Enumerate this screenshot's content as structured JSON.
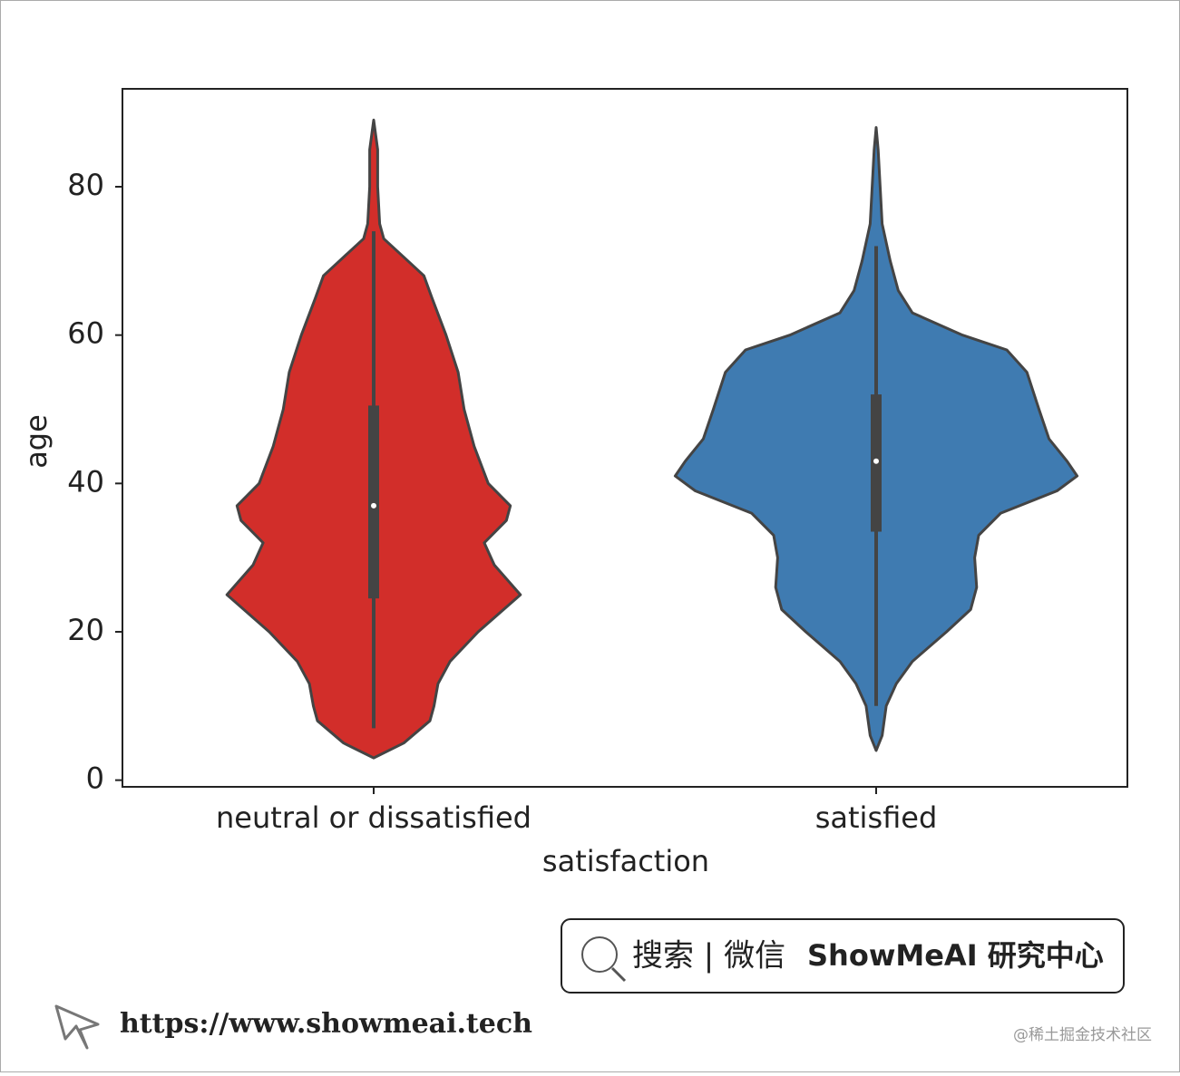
{
  "chart_data": {
    "type": "violin",
    "x_label": "satisfaction",
    "y_label": "age",
    "categories": [
      "neutral or dissatisfied",
      "satisfied"
    ],
    "ylim": [
      -0.9,
      93.2
    ],
    "yticks": [
      0,
      20,
      40,
      60,
      80
    ],
    "grid": false,
    "series": [
      {
        "name": "neutral or dissatisfied",
        "color": "#d22e2a",
        "kde_y": [
          3,
          5,
          8,
          10,
          13,
          16,
          20,
          25,
          29,
          32,
          35,
          37,
          40,
          45,
          50,
          55,
          60,
          65,
          68,
          70,
          73,
          75,
          80,
          85,
          89
        ],
        "kde_width": [
          0,
          0.15,
          0.28,
          0.3,
          0.32,
          0.38,
          0.52,
          0.73,
          0.6,
          0.55,
          0.66,
          0.68,
          0.57,
          0.5,
          0.45,
          0.42,
          0.36,
          0.29,
          0.25,
          0.17,
          0.05,
          0.03,
          0.02,
          0.02,
          0
        ],
        "min": 7,
        "q1": 24.5,
        "median": 37,
        "q3": 50.5,
        "max": 74
      },
      {
        "name": "satisfied",
        "color": "#3f7bb1",
        "kde_y": [
          4,
          6,
          10,
          13,
          16,
          20,
          23,
          26,
          30,
          33,
          36,
          39,
          41,
          43,
          46,
          50,
          55,
          58,
          60,
          63,
          66,
          70,
          75,
          80,
          85,
          88
        ],
        "kde_width": [
          0,
          0.03,
          0.05,
          0.1,
          0.18,
          0.35,
          0.47,
          0.5,
          0.49,
          0.51,
          0.62,
          0.9,
          1.0,
          0.95,
          0.86,
          0.81,
          0.75,
          0.65,
          0.43,
          0.18,
          0.11,
          0.07,
          0.03,
          0.02,
          0.01,
          0
        ],
        "min": 10,
        "q1": 33.5,
        "median": 43,
        "q3": 52,
        "max": 72
      }
    ]
  },
  "watermark": {
    "search": "搜索 | 微信",
    "brand": "ShowMeAI 研究中心",
    "url": "https://www.showmeai.tech",
    "credit": "@稀土掘金技术社区"
  }
}
